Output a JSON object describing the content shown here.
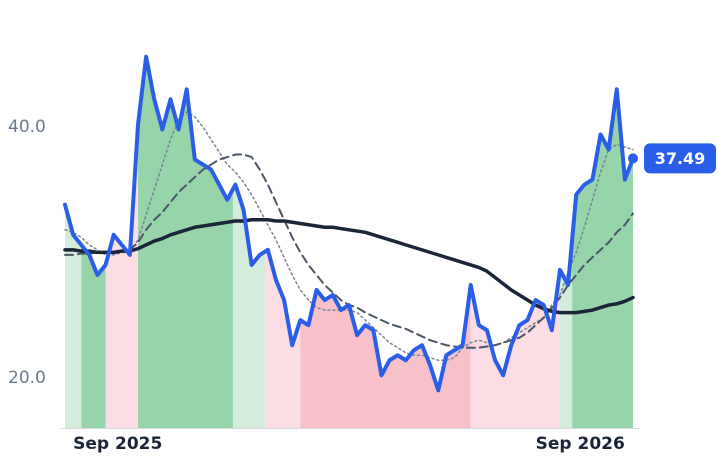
{
  "chart_data": {
    "type": "line",
    "x": [
      0,
      1,
      2,
      3,
      4,
      5,
      6,
      7,
      8,
      9,
      10,
      11,
      12,
      13,
      14,
      15,
      16,
      17,
      18,
      19,
      20,
      21,
      22,
      23,
      24,
      25,
      26,
      27,
      28,
      29,
      30,
      31,
      32,
      33,
      34,
      35,
      36,
      37,
      38,
      39,
      40,
      41,
      42,
      43,
      44,
      45,
      46,
      47,
      48,
      49,
      50,
      51,
      52,
      53,
      54,
      55,
      56,
      57,
      58,
      59,
      60,
      61,
      62,
      63,
      64,
      65,
      66,
      67,
      68,
      69,
      70
    ],
    "xlim": [
      0,
      70
    ],
    "xticks": [
      {
        "value": 6.5,
        "label": "Sep 2025"
      },
      {
        "value": 63.5,
        "label": "Sep 2026"
      }
    ],
    "ylim": [
      16,
      50
    ],
    "yticks": [
      {
        "value": 20,
        "label": "20.0"
      },
      {
        "value": 40,
        "label": "40.0"
      }
    ],
    "series": [
      {
        "color": "#2a5ee8",
        "values": [
          33.8,
          31.4,
          30.6,
          29.8,
          28.2,
          29.0,
          31.4,
          30.6,
          29.8,
          40.2,
          45.6,
          42.2,
          39.8,
          42.2,
          39.8,
          43.0,
          37.4,
          37.0,
          36.6,
          35.4,
          34.2,
          35.4,
          33.4,
          29.0,
          29.8,
          30.2,
          27.8,
          26.2,
          22.6,
          24.6,
          24.2,
          27.0,
          26.2,
          26.6,
          25.4,
          25.8,
          23.4,
          24.2,
          23.8,
          20.2,
          21.4,
          21.8,
          21.4,
          22.2,
          22.6,
          21.0,
          19.0,
          21.8,
          22.2,
          22.6,
          27.4,
          24.2,
          23.8,
          21.4,
          20.2,
          22.6,
          24.2,
          24.6,
          26.2,
          25.8,
          23.8,
          28.6,
          27.4,
          34.6,
          35.4,
          35.8,
          39.4,
          38.2,
          43.0,
          35.8,
          37.49
        ]
      },
      {
        "color": "#1b2538",
        "values": [
          30.2,
          30.2,
          30.1,
          30.1,
          30.0,
          30.0,
          30.0,
          30.1,
          30.1,
          30.3,
          30.6,
          30.9,
          31.1,
          31.4,
          31.6,
          31.8,
          32.0,
          32.1,
          32.2,
          32.3,
          32.4,
          32.5,
          32.5,
          32.6,
          32.6,
          32.6,
          32.5,
          32.5,
          32.4,
          32.3,
          32.2,
          32.1,
          32.0,
          32.0,
          31.9,
          31.8,
          31.7,
          31.6,
          31.4,
          31.2,
          31.0,
          30.8,
          30.6,
          30.4,
          30.2,
          30.0,
          29.8,
          29.6,
          29.4,
          29.2,
          29.0,
          28.8,
          28.5,
          28.0,
          27.5,
          27.0,
          26.6,
          26.2,
          25.8,
          25.5,
          25.3,
          25.2,
          25.2,
          25.2,
          25.3,
          25.4,
          25.6,
          25.8,
          25.9,
          26.1,
          26.4
        ]
      },
      {
        "color": "#4a5568",
        "values": [
          29.8,
          29.8,
          29.9,
          29.9,
          30.0,
          30.0,
          30.1,
          30.1,
          30.2,
          30.8,
          31.8,
          32.6,
          33.2,
          34.0,
          34.8,
          35.4,
          36.0,
          36.6,
          37.0,
          37.4,
          37.6,
          37.8,
          37.8,
          37.6,
          36.6,
          35.4,
          34.0,
          32.6,
          31.2,
          30.0,
          29.0,
          28.2,
          27.4,
          26.8,
          26.2,
          25.8,
          25.6,
          25.2,
          24.9,
          24.6,
          24.3,
          24.1,
          23.9,
          23.6,
          23.3,
          23.0,
          22.8,
          22.6,
          22.5,
          22.4,
          22.4,
          22.4,
          22.5,
          22.6,
          22.8,
          23.0,
          23.2,
          23.6,
          24.2,
          24.8,
          25.6,
          26.4,
          27.4,
          28.2,
          29.0,
          29.6,
          30.2,
          30.8,
          31.6,
          32.2,
          33.1
        ]
      },
      {
        "color": "#7a8595",
        "values": [
          31.8,
          31.6,
          31.2,
          30.6,
          30.2,
          29.8,
          29.8,
          30.0,
          30.0,
          31.0,
          33.0,
          35.0,
          37.0,
          39.0,
          40.6,
          41.2,
          40.8,
          40.0,
          39.0,
          38.0,
          37.0,
          36.4,
          35.6,
          34.6,
          33.4,
          32.2,
          31.0,
          29.6,
          28.2,
          27.0,
          26.2,
          25.6,
          25.4,
          25.4,
          25.4,
          25.4,
          25.2,
          24.6,
          24.0,
          23.4,
          22.8,
          22.4,
          22.0,
          21.8,
          21.8,
          21.6,
          21.4,
          21.4,
          21.6,
          22.4,
          22.8,
          23.0,
          22.8,
          22.6,
          22.8,
          23.2,
          23.6,
          24.0,
          24.4,
          24.8,
          25.8,
          26.6,
          28.4,
          30.0,
          32.0,
          34.2,
          36.4,
          38.2,
          38.6,
          38.4,
          38.2
        ]
      }
    ],
    "zones": [
      {
        "from": 0,
        "to": 2,
        "color": "#d3ecdb"
      },
      {
        "from": 2,
        "to": 5,
        "color": "#98d4aa"
      },
      {
        "from": 5,
        "to": 9,
        "color": "#fcdde3"
      },
      {
        "from": 9,
        "to": 20.7,
        "color": "#98d4aa"
      },
      {
        "from": 20.7,
        "to": 24.7,
        "color": "#d3ecdb"
      },
      {
        "from": 24.7,
        "to": 29,
        "color": "#fcdde3"
      },
      {
        "from": 29,
        "to": 50,
        "color": "#f8c1ca"
      },
      {
        "from": 50,
        "to": 61,
        "color": "#fcdde3"
      },
      {
        "from": 61,
        "to": 62.5,
        "color": "#d3ecdb"
      },
      {
        "from": 62.5,
        "to": 70,
        "color": "#98d4aa"
      }
    ],
    "last_value": 37.49
  }
}
